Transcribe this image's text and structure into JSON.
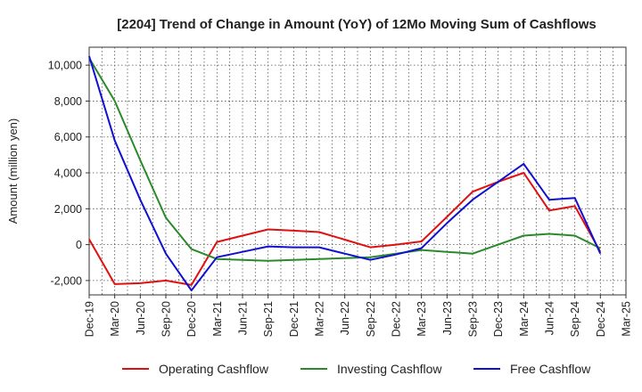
{
  "chart_data": {
    "type": "line",
    "title": "[2204]  Trend of Change in Amount (YoY) of 12Mo Moving Sum of Cashflows",
    "xlabel": "",
    "ylabel": "Amount (million yen)",
    "ylim": [
      -2800,
      11000
    ],
    "yticks": [
      -2000,
      0,
      2000,
      4000,
      6000,
      8000,
      10000
    ],
    "ytick_labels": [
      "-2,000",
      "0",
      "2,000",
      "4,000",
      "6,000",
      "8,000",
      "10,000"
    ],
    "categories": [
      "Dec-19",
      "Mar-20",
      "Jun-20",
      "Sep-20",
      "Dec-20",
      "Mar-21",
      "Jun-21",
      "Sep-21",
      "Dec-21",
      "Mar-22",
      "Jun-22",
      "Sep-22",
      "Dec-22",
      "Mar-23",
      "Jun-23",
      "Sep-23",
      "Dec-23",
      "Mar-24",
      "Jun-24",
      "Sep-24",
      "Dec-24",
      "Mar-25"
    ],
    "grid": true,
    "legend_position": "bottom",
    "series": [
      {
        "name": "Operating Cashflow",
        "color": "#e01010",
        "values": [
          300,
          -2200,
          -2150,
          -2000,
          -2250,
          150,
          500,
          850,
          780,
          700,
          280,
          -150,
          0,
          180,
          1550,
          2950,
          3500,
          4000,
          1900,
          2150,
          -400,
          null
        ]
      },
      {
        "name": "Investing Cashflow",
        "color": "#2a8a2a",
        "values": [
          10400,
          8000,
          4700,
          1500,
          -250,
          -800,
          -850,
          -900,
          -850,
          -800,
          -750,
          -700,
          -500,
          -300,
          -400,
          -500,
          0,
          500,
          600,
          500,
          -200,
          null
        ]
      },
      {
        "name": "Free Cashflow",
        "color": "#1010d0",
        "values": [
          10500,
          5800,
          2500,
          -500,
          -2550,
          -700,
          -400,
          -100,
          -150,
          -150,
          -500,
          -850,
          -550,
          -200,
          1200,
          2500,
          3500,
          4500,
          2500,
          2600,
          -500,
          null
        ]
      }
    ]
  }
}
